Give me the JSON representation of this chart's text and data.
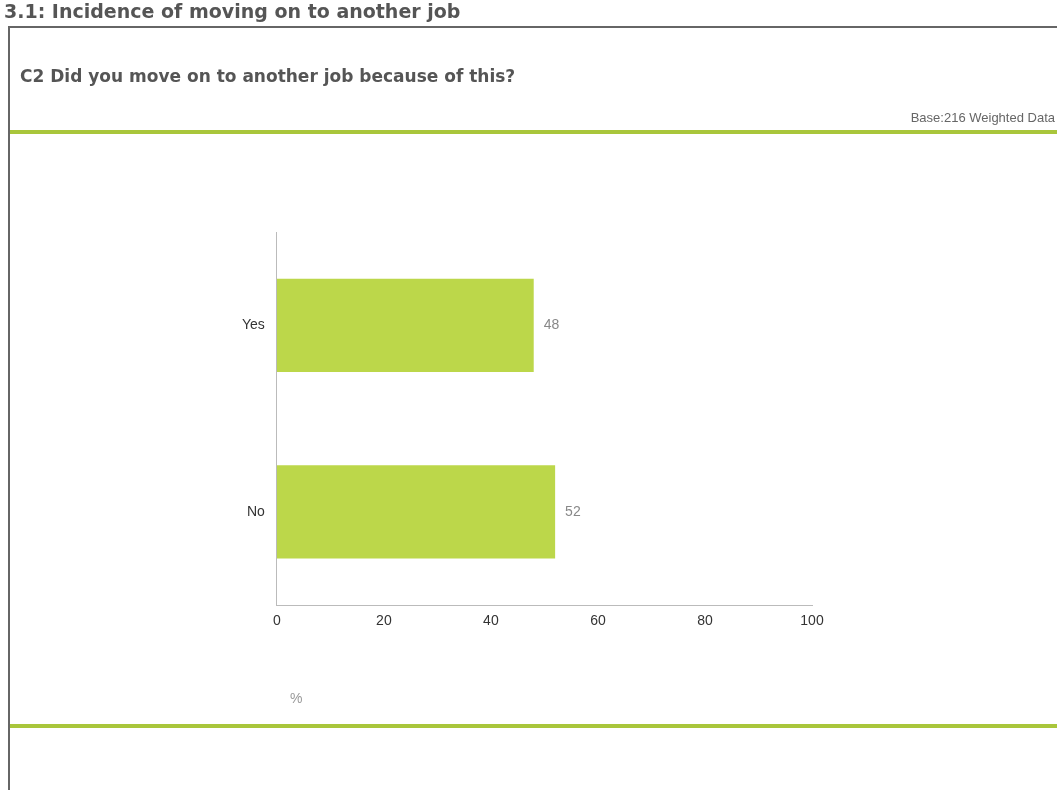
{
  "chart_data": {
    "type": "bar",
    "title": "3.1: Incidence of moving on to another job",
    "subtitle": "C2 Did you move on to another job because of this?",
    "annotations": [
      "Base:216 Weighted Data"
    ],
    "xlabel": "%",
    "orientation": "horizontal",
    "categories": [
      "Yes",
      "No"
    ],
    "values": [
      48,
      52
    ],
    "color": "#bcd74a",
    "xlim": [
      0,
      100
    ],
    "xticks": [
      0,
      20,
      40,
      60,
      80,
      100
    ],
    "data_labels": true,
    "grid": false,
    "legend": false
  }
}
